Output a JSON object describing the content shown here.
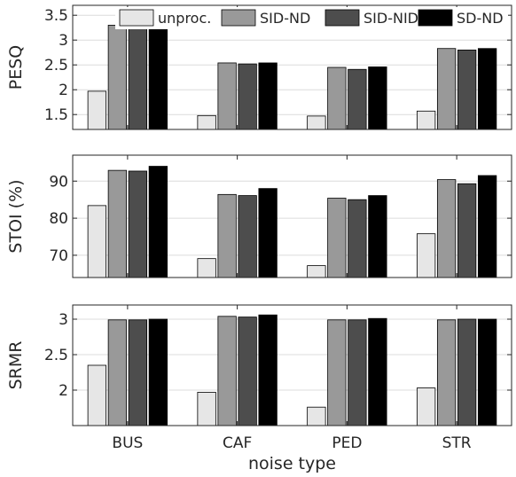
{
  "chart_data": {
    "type": "bar",
    "xlabel": "noise type",
    "categories": [
      "BUS",
      "CAF",
      "PED",
      "STR"
    ],
    "legend": {
      "placement": "top",
      "entries": [
        {
          "label": "unproc.",
          "color": "#e6e6e6"
        },
        {
          "label": "SID-ND",
          "color": "#999999"
        },
        {
          "label": "SID-NID",
          "color": "#4d4d4d"
        },
        {
          "label": "SD-ND",
          "color": "#000000"
        }
      ]
    },
    "panels": [
      {
        "ylabel": "PESQ",
        "ylim": [
          1.2,
          3.7
        ],
        "yticks": [
          1.5,
          2,
          2.5,
          3,
          3.5
        ],
        "ytick_labels": [
          "1.5",
          "2",
          "2.5",
          "3",
          "3.5"
        ],
        "series": [
          {
            "name": "unproc.",
            "values": [
              1.97,
              1.48,
              1.47,
              1.57
            ]
          },
          {
            "name": "SID-ND",
            "values": [
              3.3,
              2.54,
              2.45,
              2.83
            ]
          },
          {
            "name": "SID-NID",
            "values": [
              3.29,
              2.52,
              2.41,
              2.8
            ]
          },
          {
            "name": "SD-ND",
            "values": [
              3.3,
              2.54,
              2.46,
              2.83
            ]
          }
        ]
      },
      {
        "ylabel": "STOI (%)",
        "ylim": [
          64,
          97
        ],
        "yticks": [
          70,
          80,
          90
        ],
        "ytick_labels": [
          "70",
          "80",
          "90"
        ],
        "series": [
          {
            "name": "unproc.",
            "values": [
              83.4,
              69.1,
              67.2,
              75.8
            ]
          },
          {
            "name": "SID-ND",
            "values": [
              92.9,
              86.4,
              85.4,
              90.4
            ]
          },
          {
            "name": "SID-NID",
            "values": [
              92.7,
              86.1,
              85.0,
              89.3
            ]
          },
          {
            "name": "SD-ND",
            "values": [
              94.0,
              88.0,
              86.1,
              91.5
            ]
          }
        ]
      },
      {
        "ylabel": "SRMR",
        "ylim": [
          1.5,
          3.2
        ],
        "yticks": [
          2,
          2.5,
          3
        ],
        "ytick_labels": [
          "2",
          "2.5",
          "3"
        ],
        "series": [
          {
            "name": "unproc.",
            "values": [
              2.35,
              1.97,
              1.76,
              2.03
            ]
          },
          {
            "name": "SID-ND",
            "values": [
              2.99,
              3.04,
              2.99,
              2.99
            ]
          },
          {
            "name": "SID-NID",
            "values": [
              2.99,
              3.03,
              2.99,
              3.0
            ]
          },
          {
            "name": "SD-ND",
            "values": [
              3.0,
              3.06,
              3.01,
              3.0
            ]
          }
        ]
      }
    ]
  }
}
